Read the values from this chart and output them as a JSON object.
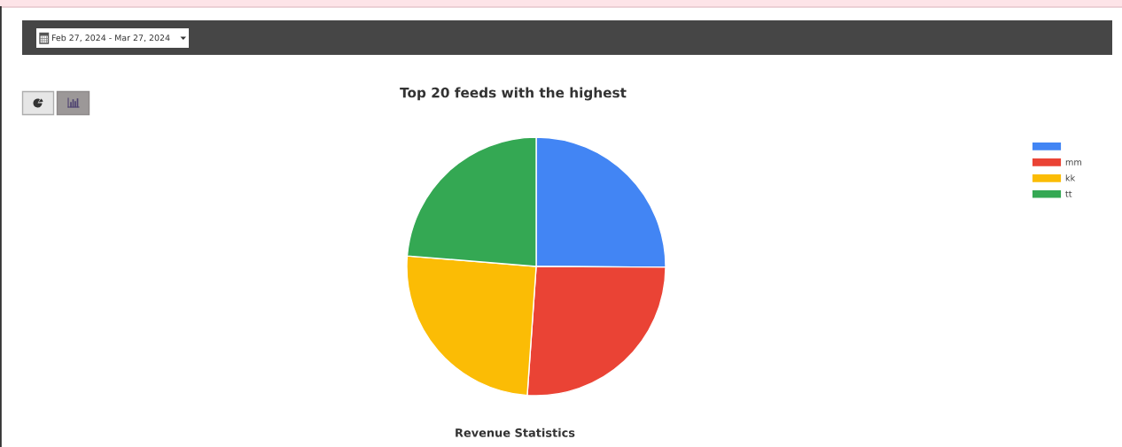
{
  "chart_data": {
    "type": "pie",
    "title": "Top 20 feeds with the highest",
    "categories": [
      null,
      "mm",
      "kk",
      "tt"
    ],
    "values": [
      25.1,
      26.0,
      25.2,
      23.7
    ],
    "colors": [
      "#4285f4",
      "#ea4335",
      "#fbbc05",
      "#34a853"
    ],
    "legend": "top right",
    "annotations": [
      "Feb 27, 2024 - Mar 27, 2024",
      "Revenue Statistics"
    ]
  }
}
